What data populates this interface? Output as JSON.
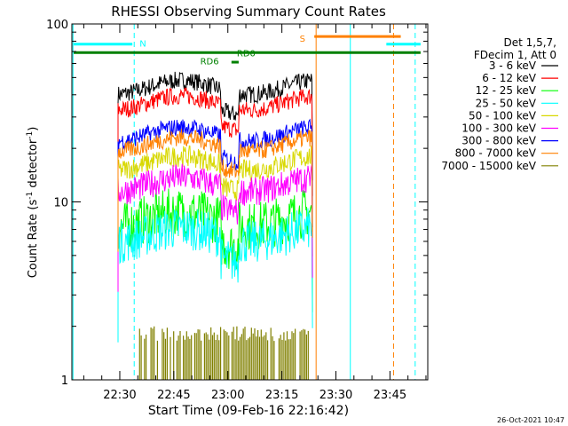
{
  "chart_data": {
    "type": "line",
    "title": "RHESSI Observing Summary Count Rates",
    "xlabel": "Start Time (09-Feb-16 22:16:42)",
    "ylabel_main": "Count Rate (s",
    "ylabel_sup": "-1",
    "ylabel_tail": " detector",
    "ylabel_end": ")",
    "yscale": "log",
    "ylim": [
      1,
      100
    ],
    "y_ticks": [
      {
        "value": 1,
        "label": "1"
      },
      {
        "value": 10,
        "label": "10"
      },
      {
        "value": 100,
        "label": "100"
      }
    ],
    "x_ticks": [
      {
        "minutes": 30,
        "label": "22:30"
      },
      {
        "minutes": 45,
        "label": "22:45"
      },
      {
        "minutes": 60,
        "label": "23:00"
      },
      {
        "minutes": 75,
        "label": "23:15"
      },
      {
        "minutes": 90,
        "label": "23:30"
      },
      {
        "minutes": 105,
        "label": "23:45"
      }
    ],
    "xlim_minutes": [
      16.7,
      115.5
    ],
    "legend_header": [
      "Det 1,5,7,",
      "FDecim 1, Att 0"
    ],
    "series": [
      {
        "name": "3 - 6 keV",
        "color": "#000000",
        "level": 44,
        "noise": 0.05
      },
      {
        "name": "6 - 12 keV",
        "color": "#ff0000",
        "level": 36,
        "noise": 0.05
      },
      {
        "name": "12 - 25 keV",
        "color": "#00ff00",
        "level": 8.0,
        "noise": 0.14
      },
      {
        "name": "25 - 50 keV",
        "color": "#00ffff",
        "level": 6.5,
        "noise": 0.12
      },
      {
        "name": "50 - 100 keV",
        "color": "#d8d800",
        "level": 16.5,
        "noise": 0.06
      },
      {
        "name": "100 - 300 keV",
        "color": "#ff00ff",
        "level": 12.5,
        "noise": 0.08
      },
      {
        "name": "300 - 800 keV",
        "color": "#0000ff",
        "level": 24,
        "noise": 0.05
      },
      {
        "name": "800 - 7000 keV",
        "color": "#ff8000",
        "level": 21,
        "noise": 0.05
      },
      {
        "name": "7000 - 15000 keV",
        "color": "#808000",
        "level": 1.0,
        "noise": 0.0
      }
    ],
    "data_span_minutes": [
      29.5,
      83.5
    ],
    "flags": [
      {
        "label": "N",
        "color": "#00ffff",
        "y": 78
      },
      {
        "label": "S",
        "color": "#ff8000",
        "y": 83
      },
      {
        "label": "RD6",
        "color": "#008000",
        "y": 62
      },
      {
        "label": "RD0",
        "color": "#008000",
        "y": 69
      }
    ],
    "flag_bars": [
      {
        "color": "#00ffff",
        "y": 77,
        "x0": 17.2,
        "x1": 33.5
      },
      {
        "color": "#00ffff",
        "y": 77,
        "x0": 104.0,
        "x1": 113.5
      },
      {
        "color": "#ff8000",
        "y": 85,
        "x0": 84.0,
        "x1": 108.0
      },
      {
        "color": "#008000",
        "y": 69,
        "x0": 17.2,
        "x1": 113.5
      },
      {
        "color": "#008000",
        "y": 61,
        "x0": 61.0,
        "x1": 63.0
      }
    ],
    "vlines": [
      {
        "minute": 17.0,
        "color": "#00ffff",
        "dash": false
      },
      {
        "minute": 34.0,
        "color": "#00ffff",
        "dash": true
      },
      {
        "minute": 84.5,
        "color": "#ff8000",
        "dash": false
      },
      {
        "minute": 94.0,
        "color": "#00ffff",
        "dash": false
      },
      {
        "minute": 106.0,
        "color": "#ff8000",
        "dash": true
      },
      {
        "minute": 112.0,
        "color": "#00ffff",
        "dash": true
      }
    ],
    "timestamp": "26-Oct-2021 10:47"
  }
}
